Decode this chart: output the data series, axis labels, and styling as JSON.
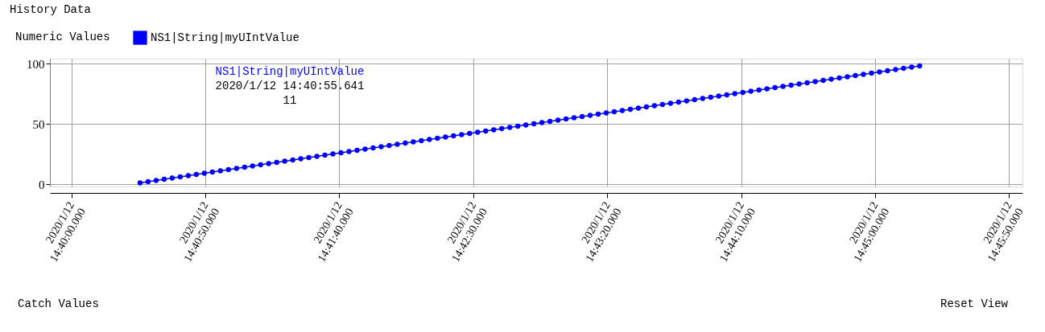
{
  "chart_data": {
    "type": "line",
    "title": "History Data",
    "subtitle": "Numeric Values",
    "series": [
      {
        "name": "NS1|String|myUIntValue",
        "color": "#0000ff",
        "x": [
          "2020-01-12T14:40:25.641",
          "2020-01-12T14:40:28.641",
          "2020-01-12T14:40:31.641",
          "2020-01-12T14:40:34.641",
          "2020-01-12T14:40:37.641",
          "2020-01-12T14:40:40.641",
          "2020-01-12T14:40:43.641",
          "2020-01-12T14:40:46.641",
          "2020-01-12T14:40:49.641",
          "2020-01-12T14:40:52.641",
          "2020-01-12T14:40:55.641",
          "2020-01-12T14:40:58.641",
          "2020-01-12T14:41:01.641",
          "2020-01-12T14:41:04.641",
          "2020-01-12T14:41:07.641",
          "2020-01-12T14:41:10.641",
          "2020-01-12T14:41:13.641",
          "2020-01-12T14:41:16.641",
          "2020-01-12T14:41:19.641",
          "2020-01-12T14:41:22.641",
          "2020-01-12T14:41:25.641",
          "2020-01-12T14:41:28.641",
          "2020-01-12T14:41:31.641",
          "2020-01-12T14:41:34.641",
          "2020-01-12T14:41:37.641",
          "2020-01-12T14:41:40.641",
          "2020-01-12T14:41:43.641",
          "2020-01-12T14:41:46.641",
          "2020-01-12T14:41:49.641",
          "2020-01-12T14:41:52.641",
          "2020-01-12T14:41:55.641",
          "2020-01-12T14:41:58.641",
          "2020-01-12T14:42:01.641",
          "2020-01-12T14:42:04.641",
          "2020-01-12T14:42:07.641",
          "2020-01-12T14:42:10.641",
          "2020-01-12T14:42:13.641",
          "2020-01-12T14:42:16.641",
          "2020-01-12T14:42:19.641",
          "2020-01-12T14:42:22.641",
          "2020-01-12T14:42:25.641",
          "2020-01-12T14:42:28.641",
          "2020-01-12T14:42:31.641",
          "2020-01-12T14:42:34.641",
          "2020-01-12T14:42:37.641",
          "2020-01-12T14:42:40.641",
          "2020-01-12T14:42:43.641",
          "2020-01-12T14:42:46.641",
          "2020-01-12T14:42:49.641",
          "2020-01-12T14:42:52.641",
          "2020-01-12T14:42:55.641",
          "2020-01-12T14:42:58.641",
          "2020-01-12T14:43:01.641",
          "2020-01-12T14:43:04.641",
          "2020-01-12T14:43:07.641",
          "2020-01-12T14:43:10.641",
          "2020-01-12T14:43:13.641",
          "2020-01-12T14:43:16.641",
          "2020-01-12T14:43:19.641",
          "2020-01-12T14:43:22.641",
          "2020-01-12T14:43:25.641",
          "2020-01-12T14:43:28.641",
          "2020-01-12T14:43:31.641",
          "2020-01-12T14:43:34.641",
          "2020-01-12T14:43:37.641",
          "2020-01-12T14:43:40.641",
          "2020-01-12T14:43:43.641",
          "2020-01-12T14:43:46.641",
          "2020-01-12T14:43:49.641",
          "2020-01-12T14:43:52.641",
          "2020-01-12T14:43:55.641",
          "2020-01-12T14:43:58.641",
          "2020-01-12T14:44:01.641",
          "2020-01-12T14:44:04.641",
          "2020-01-12T14:44:07.641",
          "2020-01-12T14:44:10.641",
          "2020-01-12T14:44:13.641",
          "2020-01-12T14:44:16.641",
          "2020-01-12T14:44:19.641",
          "2020-01-12T14:44:22.641",
          "2020-01-12T14:44:25.641",
          "2020-01-12T14:44:28.641",
          "2020-01-12T14:44:31.641",
          "2020-01-12T14:44:34.641",
          "2020-01-12T14:44:37.641",
          "2020-01-12T14:44:40.641",
          "2020-01-12T14:44:43.641",
          "2020-01-12T14:44:46.641",
          "2020-01-12T14:44:49.641",
          "2020-01-12T14:44:52.641",
          "2020-01-12T14:44:55.641",
          "2020-01-12T14:44:58.641",
          "2020-01-12T14:45:01.641",
          "2020-01-12T14:45:04.641",
          "2020-01-12T14:45:07.641",
          "2020-01-12T14:45:10.641",
          "2020-01-12T14:45:13.641",
          "2020-01-12T14:45:16.641"
        ],
        "values": [
          1,
          2,
          3,
          4,
          5,
          6,
          7,
          8,
          9,
          10,
          11,
          12,
          13,
          14,
          15,
          16,
          17,
          18,
          19,
          20,
          21,
          22,
          23,
          24,
          25,
          26,
          27,
          28,
          29,
          30,
          31,
          32,
          33,
          34,
          35,
          36,
          37,
          38,
          39,
          40,
          41,
          42,
          43,
          44,
          45,
          46,
          47,
          48,
          49,
          50,
          51,
          52,
          53,
          54,
          55,
          56,
          57,
          58,
          59,
          60,
          61,
          62,
          63,
          64,
          65,
          66,
          67,
          68,
          69,
          70,
          71,
          72,
          73,
          74,
          75,
          76,
          77,
          78,
          79,
          80,
          81,
          82,
          83,
          84,
          85,
          86,
          87,
          88,
          89,
          90,
          91,
          92,
          93,
          94,
          95,
          96,
          97,
          98
        ]
      }
    ],
    "xlim": [
      "2020-01-12T14:39:52",
      "2020-01-12T14:45:55"
    ],
    "xticks": [
      {
        "value": "2020-01-12T14:40:00",
        "label": "2020/1/12 14:40:00.000"
      },
      {
        "value": "2020-01-12T14:40:50",
        "label": "2020/1/12 14:40:50.000"
      },
      {
        "value": "2020-01-12T14:41:40",
        "label": "2020/1/12 14:41:40.000"
      },
      {
        "value": "2020-01-12T14:42:30",
        "label": "2020/1/12 14:42:30.000"
      },
      {
        "value": "2020-01-12T14:43:20",
        "label": "2020/1/12 14:43:20.000"
      },
      {
        "value": "2020-01-12T14:44:10",
        "label": "2020/1/12 14:44:10.000"
      },
      {
        "value": "2020-01-12T14:45:00",
        "label": "2020/1/12 14:45:00.000"
      },
      {
        "value": "2020-01-12T14:45:50",
        "label": "2020/1/12 14:45:50.000"
      }
    ],
    "ylim": [
      -2,
      104
    ],
    "yticks": [
      0,
      50,
      100
    ],
    "grid": true,
    "legend": "top left",
    "marker": "circle",
    "line_style": "solid",
    "annotations": [
      "Catch Values",
      "Reset View",
      "NS1|String|myUIntValue\n2020/1/12 14:40:55.641\n11"
    ]
  }
}
